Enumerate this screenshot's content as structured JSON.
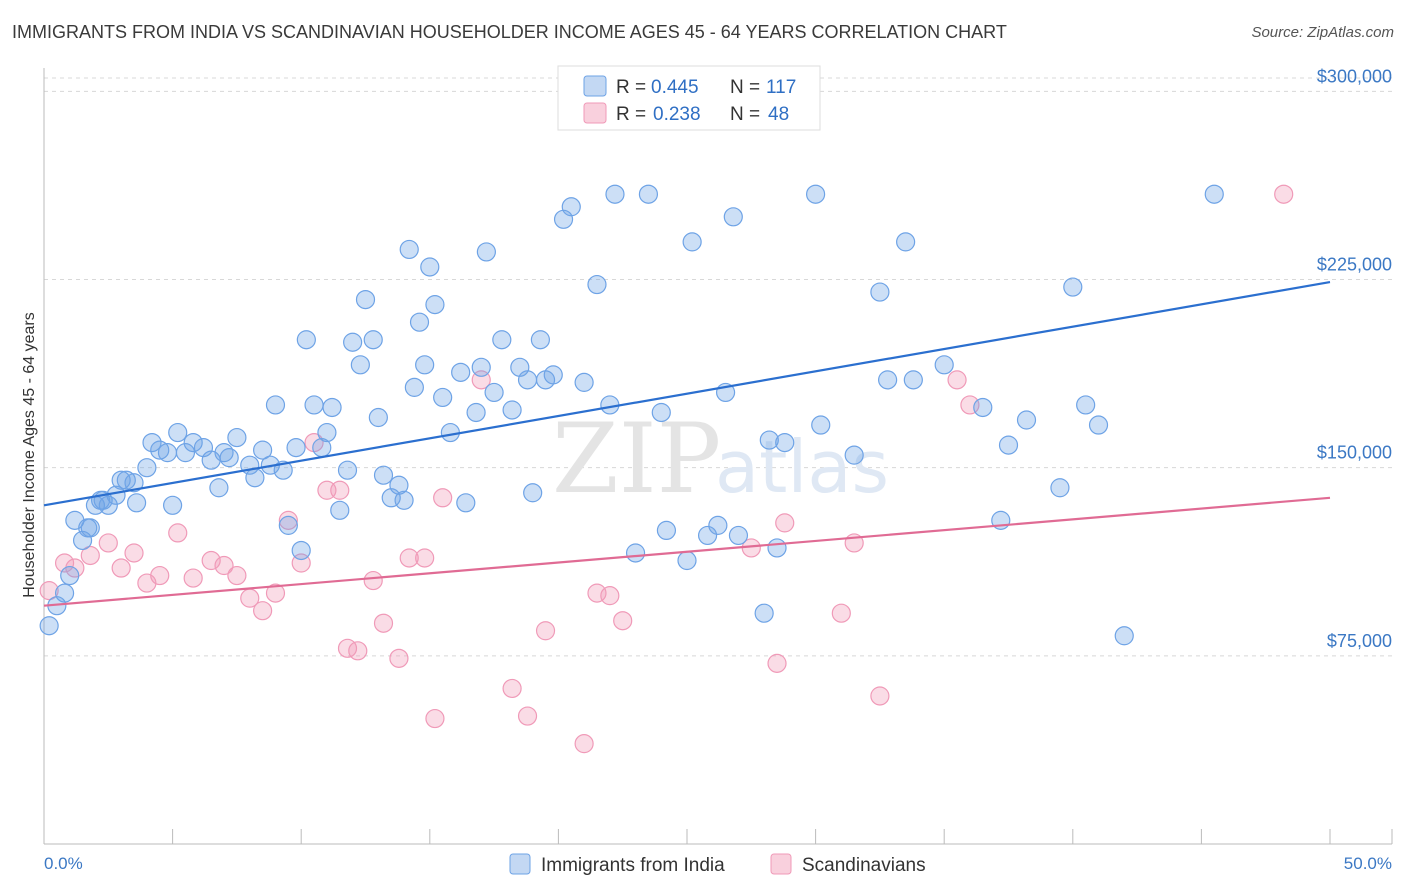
{
  "title": "IMMIGRANTS FROM INDIA VS SCANDINAVIAN HOUSEHOLDER INCOME AGES 45 - 64 YEARS CORRELATION CHART",
  "source": "Source: ZipAtlas.com",
  "watermark": {
    "zip": "ZIP",
    "atlas": "atlas"
  },
  "colors": {
    "india": "#6ea3e6",
    "india_line": "#2b6fcf",
    "scand": "#f09ab8",
    "scand_line": "#e06b94",
    "grid": "#d8d8d8"
  },
  "legend": {
    "india": {
      "r_label": "R =",
      "r_value": "0.445",
      "n_label": "N =",
      "n_value": "117"
    },
    "scand": {
      "r_label": "R =",
      "r_value": "0.238",
      "n_label": "N =",
      "n_value": "48"
    }
  },
  "bottom_legend": {
    "india": "Immigrants from India",
    "scand": "Scandinavians"
  },
  "chart_data": {
    "type": "scatter",
    "title": "IMMIGRANTS FROM INDIA VS SCANDINAVIAN HOUSEHOLDER INCOME AGES 45 - 64 YEARS CORRELATION CHART",
    "xlabel": "",
    "ylabel": "Householder Income Ages 45 - 64 years",
    "xlim": [
      0,
      50
    ],
    "ylim": [
      0,
      312500
    ],
    "x_tick_labels": [
      "0.0%",
      "50.0%"
    ],
    "y_ticks": [
      75000,
      150000,
      225000,
      300000
    ],
    "y_tick_labels": [
      "$75,000",
      "$150,000",
      "$225,000",
      "$300,000"
    ],
    "series": [
      {
        "name": "Immigrants from India",
        "trend": {
          "x0": 0,
          "y0": 135000,
          "x1": 50,
          "y1": 224000
        },
        "points": [
          [
            0.2,
            87000
          ],
          [
            0.5,
            95000
          ],
          [
            0.8,
            100000
          ],
          [
            1.0,
            107000
          ],
          [
            1.2,
            129000
          ],
          [
            1.5,
            121000
          ],
          [
            1.7,
            126000
          ],
          [
            1.8,
            126000
          ],
          [
            2.0,
            135000
          ],
          [
            2.2,
            137000
          ],
          [
            2.3,
            137000
          ],
          [
            2.5,
            135000
          ],
          [
            2.8,
            139000
          ],
          [
            3.0,
            145000
          ],
          [
            3.2,
            145000
          ],
          [
            3.5,
            144000
          ],
          [
            3.6,
            136000
          ],
          [
            4.0,
            150000
          ],
          [
            4.2,
            160000
          ],
          [
            4.5,
            157000
          ],
          [
            4.8,
            156000
          ],
          [
            5.0,
            135000
          ],
          [
            5.2,
            164000
          ],
          [
            5.5,
            156000
          ],
          [
            5.8,
            160000
          ],
          [
            6.2,
            158000
          ],
          [
            6.5,
            153000
          ],
          [
            6.8,
            142000
          ],
          [
            7.0,
            156000
          ],
          [
            7.5,
            162000
          ],
          [
            7.2,
            154000
          ],
          [
            8.0,
            151000
          ],
          [
            8.2,
            146000
          ],
          [
            8.5,
            157000
          ],
          [
            8.8,
            151000
          ],
          [
            9.0,
            175000
          ],
          [
            9.3,
            149000
          ],
          [
            9.5,
            127000
          ],
          [
            9.8,
            158000
          ],
          [
            10.2,
            201000
          ],
          [
            10.0,
            117000
          ],
          [
            10.5,
            175000
          ],
          [
            10.8,
            158000
          ],
          [
            11.0,
            164000
          ],
          [
            11.2,
            174000
          ],
          [
            11.5,
            133000
          ],
          [
            11.8,
            149000
          ],
          [
            12.0,
            200000
          ],
          [
            12.3,
            191000
          ],
          [
            12.5,
            217000
          ],
          [
            12.8,
            201000
          ],
          [
            13.0,
            170000
          ],
          [
            13.2,
            147000
          ],
          [
            13.5,
            138000
          ],
          [
            13.8,
            143000
          ],
          [
            14.0,
            137000
          ],
          [
            14.2,
            237000
          ],
          [
            14.4,
            182000
          ],
          [
            14.6,
            208000
          ],
          [
            14.8,
            191000
          ],
          [
            15.0,
            230000
          ],
          [
            15.2,
            215000
          ],
          [
            15.5,
            178000
          ],
          [
            15.8,
            164000
          ],
          [
            16.2,
            188000
          ],
          [
            16.4,
            136000
          ],
          [
            16.8,
            172000
          ],
          [
            17.0,
            190000
          ],
          [
            17.2,
            236000
          ],
          [
            17.5,
            180000
          ],
          [
            17.8,
            201000
          ],
          [
            18.2,
            173000
          ],
          [
            18.5,
            190000
          ],
          [
            18.8,
            185000
          ],
          [
            19.0,
            140000
          ],
          [
            19.3,
            201000
          ],
          [
            19.5,
            185000
          ],
          [
            19.8,
            187000
          ],
          [
            20.2,
            249000
          ],
          [
            20.5,
            254000
          ],
          [
            21.0,
            184000
          ],
          [
            21.5,
            223000
          ],
          [
            22.0,
            175000
          ],
          [
            22.2,
            259000
          ],
          [
            23.0,
            116000
          ],
          [
            23.5,
            259000
          ],
          [
            24.0,
            172000
          ],
          [
            24.2,
            125000
          ],
          [
            25.0,
            113000
          ],
          [
            25.2,
            240000
          ],
          [
            25.8,
            123000
          ],
          [
            26.2,
            127000
          ],
          [
            26.5,
            180000
          ],
          [
            26.8,
            250000
          ],
          [
            27.0,
            123000
          ],
          [
            28.0,
            92000
          ],
          [
            28.2,
            161000
          ],
          [
            28.5,
            118000
          ],
          [
            28.8,
            160000
          ],
          [
            30.0,
            259000
          ],
          [
            30.2,
            167000
          ],
          [
            31.5,
            155000
          ],
          [
            32.5,
            220000
          ],
          [
            32.8,
            185000
          ],
          [
            33.5,
            240000
          ],
          [
            33.8,
            185000
          ],
          [
            35.0,
            191000
          ],
          [
            36.5,
            174000
          ],
          [
            37.2,
            129000
          ],
          [
            37.5,
            159000
          ],
          [
            38.2,
            169000
          ],
          [
            39.5,
            142000
          ],
          [
            40.0,
            222000
          ],
          [
            40.5,
            175000
          ],
          [
            41.0,
            167000
          ],
          [
            42.0,
            83000
          ],
          [
            45.5,
            259000
          ]
        ]
      },
      {
        "name": "Scandinavians",
        "trend": {
          "x0": 0,
          "y0": 95000,
          "x1": 50,
          "y1": 138000
        },
        "points": [
          [
            0.2,
            101000
          ],
          [
            0.8,
            112000
          ],
          [
            1.2,
            110000
          ],
          [
            1.8,
            115000
          ],
          [
            2.5,
            120000
          ],
          [
            3.0,
            110000
          ],
          [
            3.5,
            116000
          ],
          [
            4.0,
            104000
          ],
          [
            4.5,
            107000
          ],
          [
            5.2,
            124000
          ],
          [
            5.8,
            106000
          ],
          [
            6.5,
            113000
          ],
          [
            7.0,
            111000
          ],
          [
            7.5,
            107000
          ],
          [
            8.0,
            98000
          ],
          [
            8.5,
            93000
          ],
          [
            9.0,
            100000
          ],
          [
            9.5,
            129000
          ],
          [
            10.0,
            112000
          ],
          [
            10.5,
            160000
          ],
          [
            11.0,
            141000
          ],
          [
            11.5,
            141000
          ],
          [
            11.8,
            78000
          ],
          [
            12.2,
            77000
          ],
          [
            12.8,
            105000
          ],
          [
            13.2,
            88000
          ],
          [
            13.8,
            74000
          ],
          [
            14.2,
            114000
          ],
          [
            14.8,
            114000
          ],
          [
            15.2,
            50000
          ],
          [
            15.5,
            138000
          ],
          [
            17.0,
            185000
          ],
          [
            18.2,
            62000
          ],
          [
            18.8,
            51000
          ],
          [
            19.5,
            85000
          ],
          [
            21.0,
            40000
          ],
          [
            21.5,
            100000
          ],
          [
            22.0,
            99000
          ],
          [
            22.5,
            89000
          ],
          [
            27.5,
            118000
          ],
          [
            28.5,
            72000
          ],
          [
            28.8,
            128000
          ],
          [
            31.0,
            92000
          ],
          [
            31.5,
            120000
          ],
          [
            32.5,
            59000
          ],
          [
            35.5,
            185000
          ],
          [
            36.0,
            175000
          ],
          [
            48.2,
            259000
          ]
        ]
      }
    ]
  }
}
